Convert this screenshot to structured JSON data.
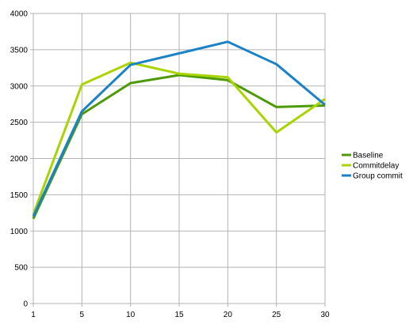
{
  "chart_data": {
    "type": "line",
    "title": "",
    "xlabel": "",
    "ylabel": "",
    "x": [
      1,
      5,
      10,
      15,
      20,
      25,
      30
    ],
    "xlim": [
      1,
      30
    ],
    "ylim": [
      0,
      4000
    ],
    "yticks": [
      0,
      500,
      1000,
      1500,
      2000,
      2500,
      3000,
      3500,
      4000
    ],
    "grid": true,
    "legend_position": "right",
    "series": [
      {
        "name": "Baseline",
        "color": "#4e9a06",
        "values": [
          1170,
          2610,
          3040,
          3150,
          3080,
          2710,
          2730
        ]
      },
      {
        "name": "Commitdelay",
        "color": "#a8d400",
        "values": [
          1230,
          3020,
          3320,
          3170,
          3120,
          2360,
          2820
        ]
      },
      {
        "name": "Group commit",
        "color": "#1a82c6",
        "values": [
          1200,
          2650,
          3290,
          3450,
          3610,
          3300,
          2740
        ]
      }
    ]
  }
}
